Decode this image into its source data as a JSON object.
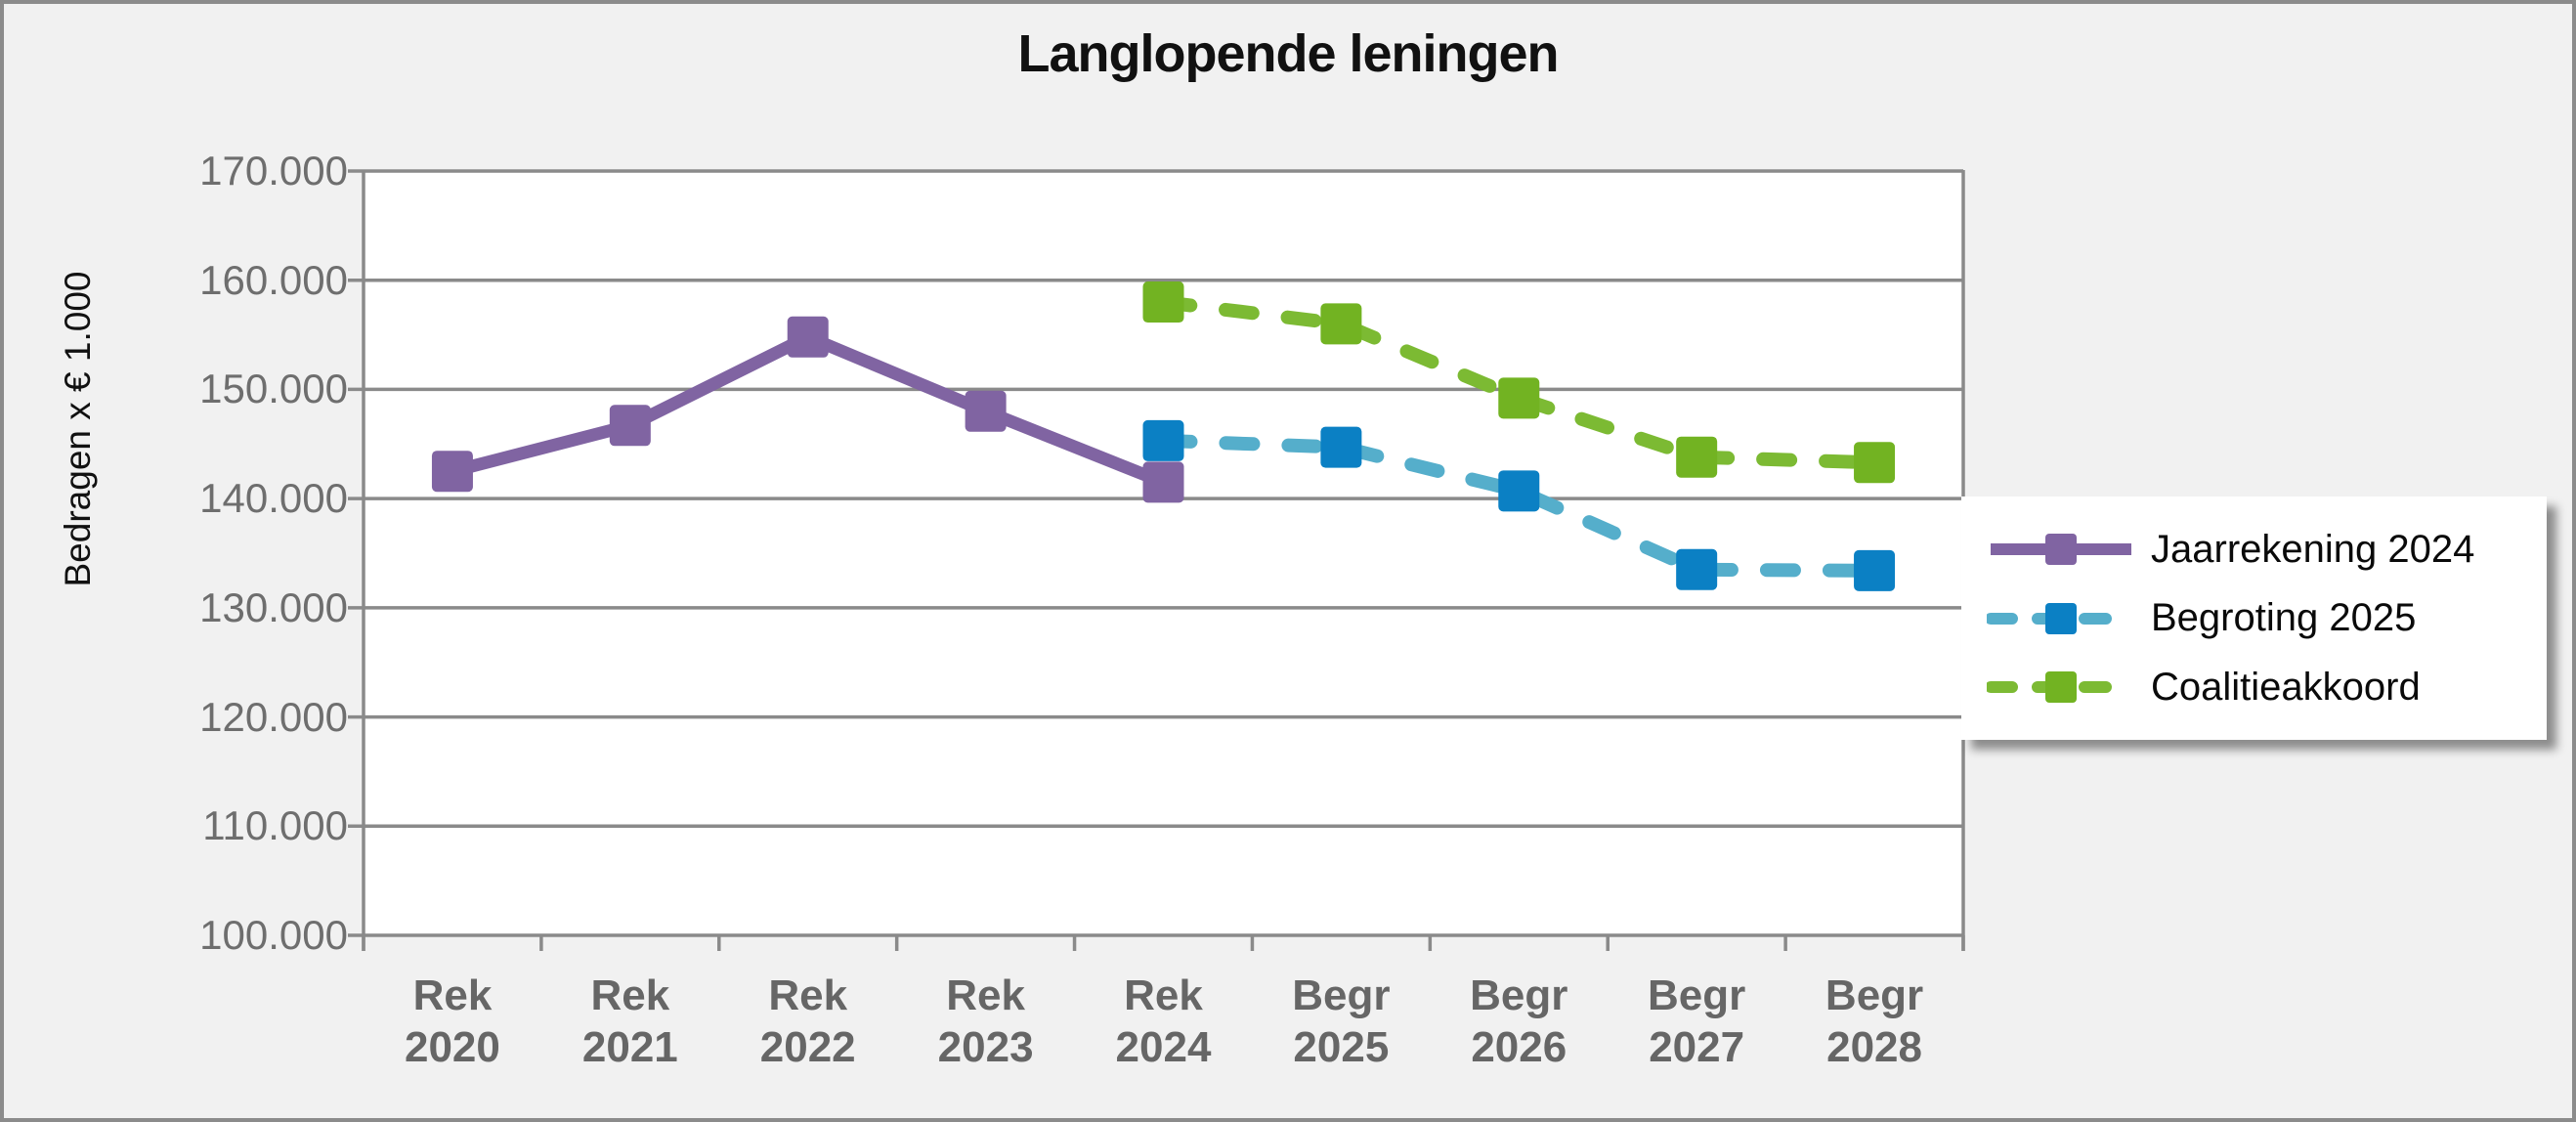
{
  "colors": {
    "canvas_background": "#F1F1F1",
    "plot_background": "#FFFFFF",
    "frame_border": "#8B8B8B",
    "gridline": "#8A8A8A",
    "y_tick_text": "#6E6E6E",
    "x_tick_text": "#666666",
    "title_text": "#111111"
  },
  "chart_data": {
    "type": "line",
    "title": "Langlopende leningen",
    "y_axis_title": "Bedragen x € 1.000",
    "grid": true,
    "legend_position": "right",
    "ylim": [
      100000,
      170000
    ],
    "y_ticks": [
      {
        "value": 170000,
        "label": "170.000"
      },
      {
        "value": 160000,
        "label": "160.000"
      },
      {
        "value": 150000,
        "label": "150.000"
      },
      {
        "value": 140000,
        "label": "140.000"
      },
      {
        "value": 130000,
        "label": "130.000"
      },
      {
        "value": 120000,
        "label": "120.000"
      },
      {
        "value": 110000,
        "label": "110.000"
      },
      {
        "value": 100000,
        "label": "100.000"
      }
    ],
    "categories": [
      "Rek 2020",
      "Rek 2021",
      "Rek 2022",
      "Rek 2023",
      "Rek 2024",
      "Begr 2025",
      "Begr 2026",
      "Begr 2027",
      "Begr 2028"
    ],
    "series": [
      {
        "name": "Jaarrekening 2024",
        "line_style": "solid",
        "line_color": "#8064A2",
        "marker_color": "#8064A2",
        "values": [
          142500,
          146700,
          154800,
          148000,
          141500,
          null,
          null,
          null,
          null
        ]
      },
      {
        "name": "Begroting 2025",
        "line_style": "dashed",
        "line_color": "#55AECB",
        "marker_color": "#0B80C4",
        "values": [
          null,
          null,
          null,
          null,
          145300,
          144700,
          140700,
          133500,
          133400
        ]
      },
      {
        "name": "Coalitieakkoord",
        "line_style": "dashed",
        "line_color": "#7CBA33",
        "marker_color": "#72B322",
        "values": [
          null,
          null,
          null,
          null,
          158000,
          156000,
          149200,
          143800,
          143300
        ]
      }
    ]
  }
}
